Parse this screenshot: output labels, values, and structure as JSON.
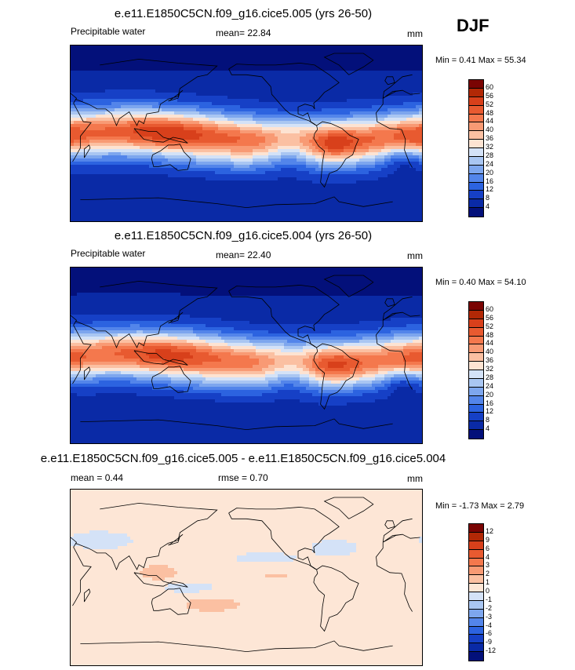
{
  "season": "DJF",
  "panels": [
    {
      "title": "e.e11.E1850C5CN.f09_g16.cice5.005 (yrs 26-50)",
      "left_label": "Precipitable water",
      "center_label": "mean=  22.84",
      "units": "mm",
      "minmax": "Min =   0.41 Max =  55.34",
      "kind": "field",
      "scale": 1.0
    },
    {
      "title": "e.e11.E1850C5CN.f09_g16.cice5.004 (yrs 26-50)",
      "left_label": "Precipitable water",
      "center_label": "mean=  22.40",
      "units": "mm",
      "minmax": "Min =   0.40 Max =  54.10",
      "kind": "field",
      "scale": 0.97
    },
    {
      "title": "e.e11.E1850C5CN.f09_g16.cice5.005 - e.e11.E1850C5CN.f09_g16.cice5.004",
      "left_label": "mean =   0.44",
      "center_label": "rmse =   0.70",
      "units": "mm",
      "minmax": "Min =  -1.73 Max =   2.79",
      "kind": "diff"
    }
  ],
  "colorbar_field": {
    "labels": [
      "60",
      "56",
      "52",
      "48",
      "44",
      "40",
      "36",
      "32",
      "28",
      "24",
      "20",
      "16",
      "12",
      "8",
      "4"
    ],
    "colors": [
      "#7a0403",
      "#b22806",
      "#d8401b",
      "#e85a30",
      "#f4784d",
      "#f89a74",
      "#fbc0a2",
      "#fde3d2",
      "#d4e2f7",
      "#a9c6f2",
      "#7da6ee",
      "#5385ea",
      "#2c63e0",
      "#1640c6",
      "#0a2aa6",
      "#03107a"
    ]
  },
  "colorbar_diff": {
    "labels": [
      "12",
      "9",
      "6",
      "4",
      "3",
      "2",
      "1",
      "0",
      "-1",
      "-2",
      "-3",
      "-4",
      "-6",
      "-9",
      "-12"
    ],
    "colors": [
      "#7a0403",
      "#b22806",
      "#d8401b",
      "#e85a30",
      "#f4784d",
      "#f89a74",
      "#fbc0a2",
      "#fde6d6",
      "#d4e2f7",
      "#a9c6f2",
      "#7da6ee",
      "#5385ea",
      "#2c63e0",
      "#1640c6",
      "#0a2aa6",
      "#03107a"
    ]
  }
}
